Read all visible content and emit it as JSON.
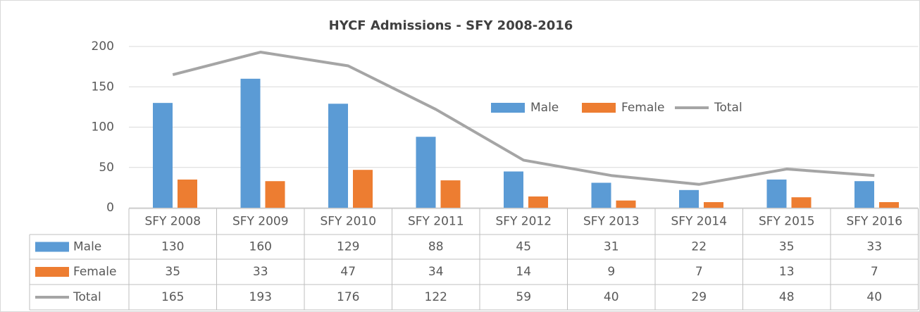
{
  "chart_data": {
    "type": "bar",
    "title": "HYCF Admissions - SFY 2008-2016",
    "categories": [
      "SFY 2008",
      "SFY 2009",
      "SFY 2010",
      "SFY 2011",
      "SFY 2012",
      "SFY 2013",
      "SFY 2014",
      "SFY 2015",
      "SFY 2016"
    ],
    "series": [
      {
        "name": "Male",
        "color": "#5b9bd5",
        "type": "bar",
        "values": [
          130,
          160,
          129,
          88,
          45,
          31,
          22,
          35,
          33
        ]
      },
      {
        "name": "Female",
        "color": "#ed7d31",
        "type": "bar",
        "values": [
          35,
          33,
          47,
          34,
          14,
          9,
          7,
          13,
          7
        ]
      },
      {
        "name": "Total",
        "color": "#a5a5a5",
        "type": "line",
        "values": [
          165,
          193,
          176,
          122,
          59,
          40,
          29,
          48,
          40
        ]
      }
    ],
    "ylim": [
      0,
      200
    ],
    "yticks": [
      0,
      50,
      100,
      150,
      200
    ],
    "grid": true,
    "data_table": true
  }
}
